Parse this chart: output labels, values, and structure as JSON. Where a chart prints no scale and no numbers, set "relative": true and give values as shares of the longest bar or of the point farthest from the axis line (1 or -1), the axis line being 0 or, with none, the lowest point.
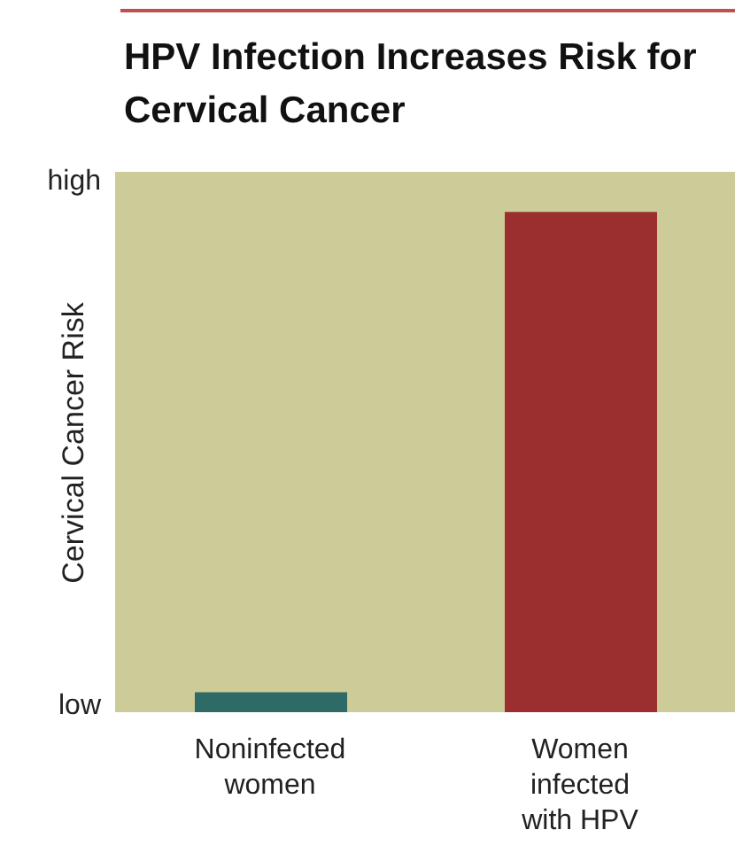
{
  "chart_data": {
    "type": "bar",
    "title": "HPV Infection Increases Risk for Cervical Cancer",
    "ylabel": "Cervical Cancer Risk",
    "annotations": [
      "high",
      "low"
    ],
    "categories": [
      "Noninfected women",
      "Women infected with HPV"
    ],
    "values": [
      0.04,
      1
    ],
    "colors": [
      "#2e6a66",
      "#9b2f2f"
    ],
    "relative": true
  }
}
